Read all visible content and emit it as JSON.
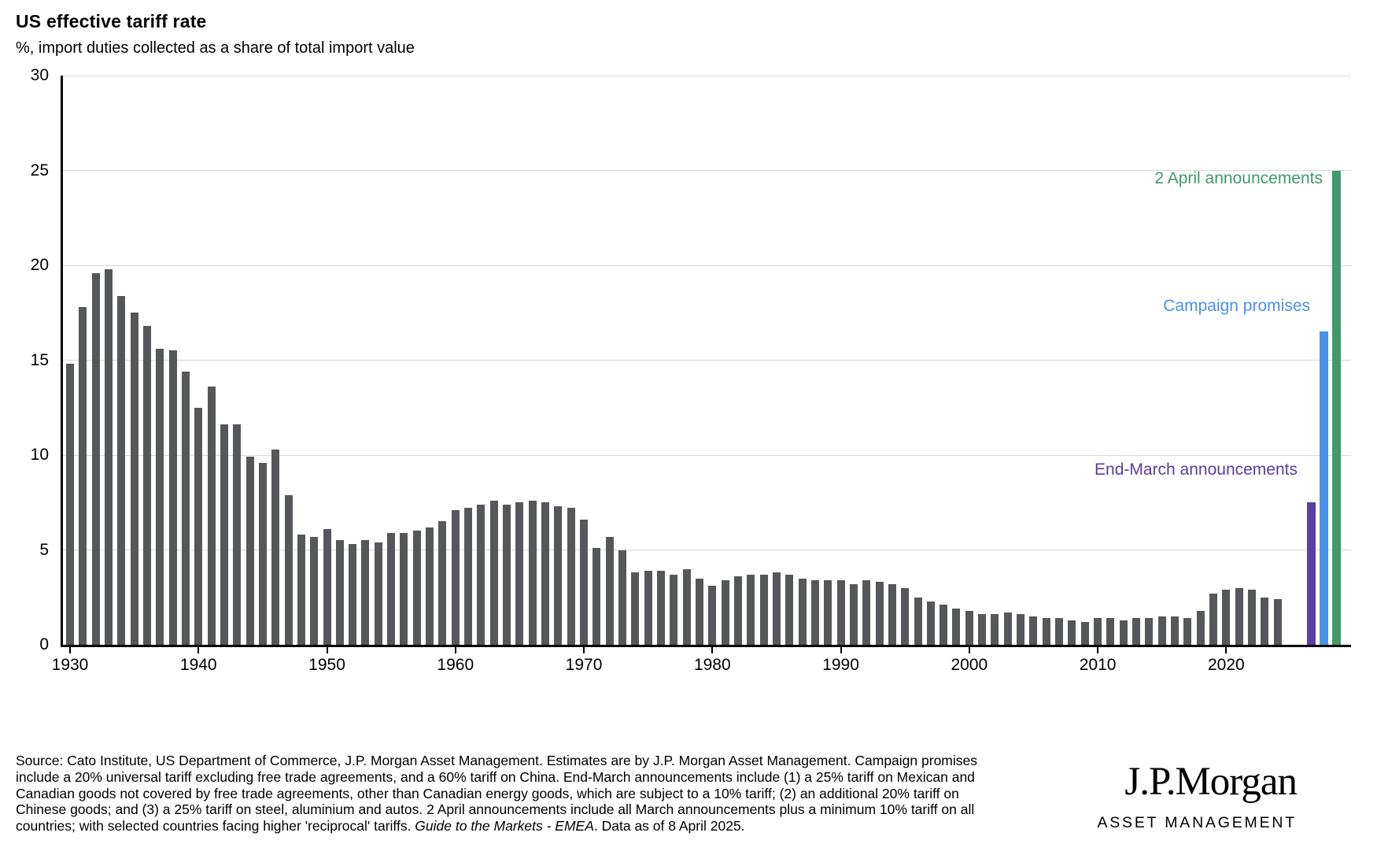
{
  "title": "US effective tariff rate",
  "subtitle": "%, import duties collected as a share of total import value",
  "chart_data": {
    "type": "bar",
    "title": "US effective tariff rate",
    "subtitle": "%, import duties collected as a share of total import value",
    "ylabel": "%",
    "ylim": [
      0,
      30
    ],
    "yticks": [
      0,
      5,
      10,
      15,
      20,
      25,
      30
    ],
    "xticks": [
      1930,
      1940,
      1950,
      1960,
      1970,
      1980,
      1990,
      2000,
      2010,
      2020
    ],
    "grid": "horizontal",
    "legend_position": "none",
    "bar_color": "#56575B",
    "years": [
      1930,
      1931,
      1932,
      1933,
      1934,
      1935,
      1936,
      1937,
      1938,
      1939,
      1940,
      1941,
      1942,
      1943,
      1944,
      1945,
      1946,
      1947,
      1948,
      1949,
      1950,
      1951,
      1952,
      1953,
      1954,
      1955,
      1956,
      1957,
      1958,
      1959,
      1960,
      1961,
      1962,
      1963,
      1964,
      1965,
      1966,
      1967,
      1968,
      1969,
      1970,
      1971,
      1972,
      1973,
      1974,
      1975,
      1976,
      1977,
      1978,
      1979,
      1980,
      1981,
      1982,
      1983,
      1984,
      1985,
      1986,
      1987,
      1988,
      1989,
      1990,
      1991,
      1992,
      1993,
      1994,
      1995,
      1996,
      1997,
      1998,
      1999,
      2000,
      2001,
      2002,
      2003,
      2004,
      2005,
      2006,
      2007,
      2008,
      2009,
      2010,
      2011,
      2012,
      2013,
      2014,
      2015,
      2016,
      2017,
      2018,
      2019,
      2020,
      2021,
      2022,
      2023,
      2024
    ],
    "values": [
      14.8,
      17.8,
      19.6,
      19.8,
      18.4,
      17.5,
      16.8,
      15.6,
      15.5,
      14.4,
      12.5,
      13.6,
      11.6,
      11.6,
      9.9,
      9.6,
      10.3,
      7.9,
      5.8,
      5.7,
      6.1,
      5.5,
      5.3,
      5.5,
      5.4,
      5.9,
      5.9,
      6.0,
      6.2,
      6.5,
      7.1,
      7.2,
      7.4,
      7.6,
      7.4,
      7.5,
      7.6,
      7.5,
      7.3,
      7.2,
      6.6,
      5.1,
      5.7,
      5.0,
      3.8,
      3.9,
      3.9,
      3.7,
      4.0,
      3.5,
      3.1,
      3.4,
      3.6,
      3.7,
      3.7,
      3.8,
      3.7,
      3.5,
      3.4,
      3.4,
      3.4,
      3.2,
      3.4,
      3.3,
      3.2,
      3.0,
      2.5,
      2.3,
      2.1,
      1.9,
      1.8,
      1.6,
      1.6,
      1.7,
      1.6,
      1.5,
      1.4,
      1.4,
      1.3,
      1.2,
      1.4,
      1.4,
      1.3,
      1.4,
      1.4,
      1.5,
      1.5,
      1.4,
      1.8,
      2.7,
      2.9,
      3.0,
      2.9,
      2.5,
      2.4
    ],
    "scenarios": [
      {
        "label": "End-March announcements",
        "value": 7.5,
        "color": "#5C3DA8"
      },
      {
        "label": "Campaign promises",
        "value": 16.5,
        "color": "#4A90E8"
      },
      {
        "label": "2 April announcements",
        "value": 25.0,
        "color": "#419A6C"
      }
    ]
  },
  "footer": {
    "text_before": "Source: Cato Institute, US Department of Commerce, J.P. Morgan Asset Management. Estimates are by J.P. Morgan Asset Management. Campaign promises include a 20% universal tariff excluding free trade agreements, and a 60% tariff on China. End-March announcements include (1) a 25% tariff on Mexican and Canadian goods not covered by free trade agreements, other than Canadian energy goods, which are subject to a 10% tariff; (2) an additional 20% tariff on Chinese goods; and (3) a 25% tariff on steel, aluminium and autos. 2 April announcements include all March announcements plus a minimum 10% tariff on all countries; with selected countries facing higher 'reciprocal' tariffs. ",
    "italic": "Guide to the Markets - EMEA",
    "text_after": ". Data as of 8 April 2025."
  },
  "logo": {
    "brand": "J.P.Morgan",
    "division": "ASSET MANAGEMENT"
  }
}
